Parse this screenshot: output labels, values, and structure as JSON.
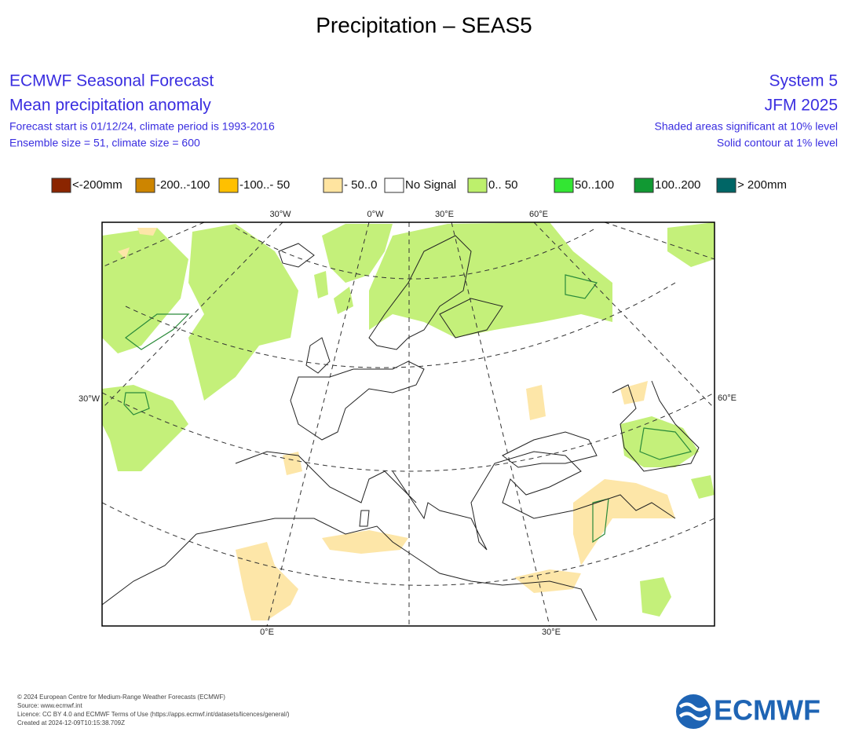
{
  "title": "Precipitation – SEAS5",
  "header": {
    "left": [
      "ECMWF Seasonal Forecast",
      "Mean precipitation anomaly",
      "Forecast start is 01/12/24, climate period is 1993-2016",
      "Ensemble size = 51, climate size = 600"
    ],
    "right": [
      "System 5",
      "JFM 2025",
      "Shaded areas significant at 10% level",
      "Solid contour at 1% level"
    ]
  },
  "legend": [
    {
      "label": "<-200mm",
      "color": "#8b2500"
    },
    {
      "label": "-200..-100",
      "color": "#cd8500"
    },
    {
      "label": "-100..- 50",
      "color": "#ffc000"
    },
    {
      "label": "- 50..0",
      "color": "#ffe4a0"
    },
    {
      "label": "No Signal",
      "color": "#ffffff"
    },
    {
      "label": "0.. 50",
      "color": "#bdf06c"
    },
    {
      "label": "50..100",
      "color": "#33e633"
    },
    {
      "label": "100..200",
      "color": "#119933"
    },
    {
      "label": "> 200mm",
      "color": "#006666"
    }
  ],
  "map": {
    "top_labels": [
      "30°W",
      "0°W",
      "30°E",
      "60°E"
    ],
    "left_label": "30°W",
    "right_label": "60°E",
    "bottom_labels": [
      "0°E",
      "30°E"
    ]
  },
  "footer": [
    "© 2024 European Centre for Medium-Range Weather Forecasts (ECMWF)",
    "Source: www.ecmwf.int",
    "Licence: CC BY 4.0 and ECMWF Terms of Use (https://apps.ecmwf.int/datasets/licences/general/)",
    "Created at 2024-12-09T10:15:38.709Z"
  ],
  "logo": "ECMWF"
}
